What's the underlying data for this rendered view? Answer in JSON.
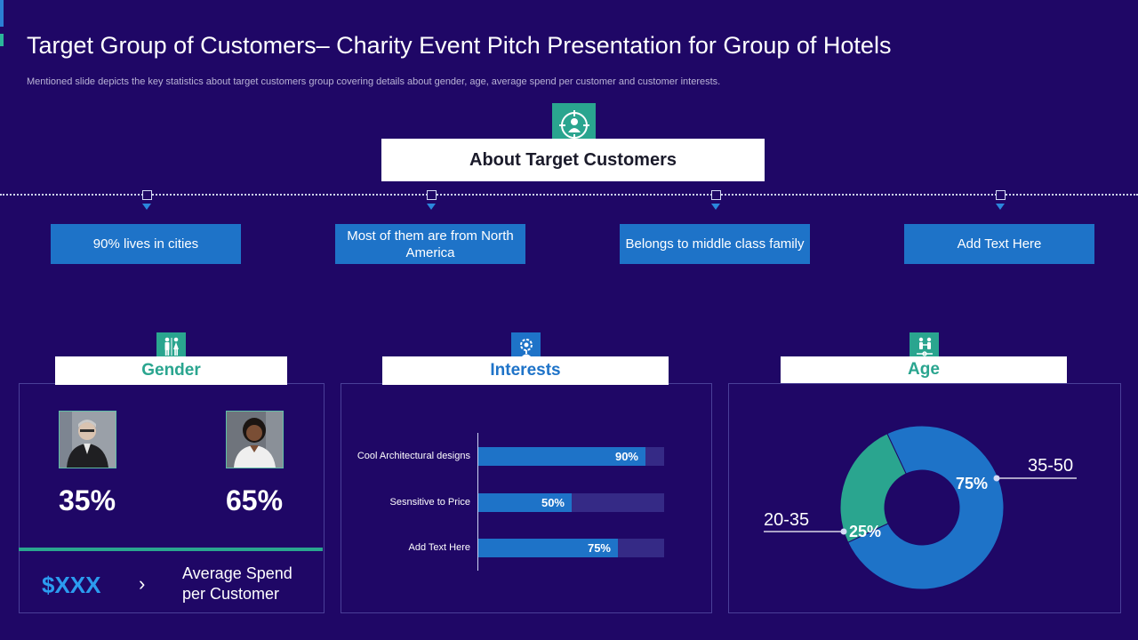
{
  "header": {
    "title": "Target Group of Customers– Charity Event Pitch Presentation for Group of Hotels",
    "subtitle": "Mentioned slide depicts the key statistics about target customers group covering details about gender, age, average spend per customer and customer interests."
  },
  "about": {
    "title": "About Target Customers",
    "icon": "target-person-icon",
    "facts": [
      "90% lives in cities",
      "Most of them are from North America",
      "Belongs to middle class family",
      "Add Text Here"
    ]
  },
  "gender": {
    "title": "Gender",
    "icon": "restroom-icon",
    "male_pct": "35%",
    "female_pct": "65%",
    "spend_value": "$XXX",
    "spend_arrow": "›",
    "spend_label": "Average Spend per Customer"
  },
  "interests": {
    "title": "Interests",
    "icon": "gear-idea-icon"
  },
  "age": {
    "title": "Age",
    "icon": "family-icon"
  },
  "colors": {
    "background": "#1f0766",
    "teal": "#2aa58f",
    "blue": "#1e73c8",
    "track": "#352a86"
  },
  "chart_data": [
    {
      "type": "bar",
      "orientation": "horizontal",
      "title": "Interests",
      "categories": [
        "Cool Architectural designs",
        "Sesnsitive to Price",
        "Add Text Here"
      ],
      "values": [
        90,
        50,
        75
      ],
      "labels": [
        "90%",
        "50%",
        "75%"
      ],
      "xlim": [
        0,
        100
      ]
    },
    {
      "type": "pie",
      "title": "Age",
      "donut": true,
      "categories": [
        "35-50",
        "20-35"
      ],
      "values": [
        75,
        25
      ],
      "labels": [
        "75%",
        "25%"
      ],
      "colors": [
        "#1e73c8",
        "#2aa58f"
      ]
    }
  ]
}
